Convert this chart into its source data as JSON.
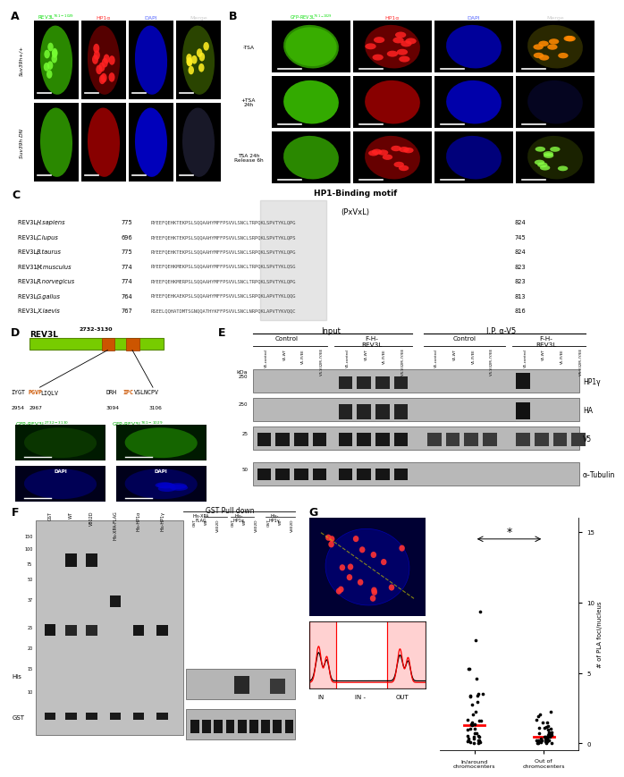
{
  "panel_labels": [
    "A",
    "B",
    "C",
    "D",
    "E",
    "F",
    "G"
  ],
  "row_labels_A": [
    "Suv39h+/+",
    "Suv39h DN"
  ],
  "col_labels_A": [
    "REV3L^{761-1029}",
    "HP1α",
    "DAPI",
    "Merge"
  ],
  "col_colors_A": [
    "#00dd00",
    "#ff3333",
    "#5566ff",
    "#cccccc"
  ],
  "col_labels_B": [
    "GFP-REV3L^{761-1029}",
    "HP1α",
    "DAPI",
    "Merge"
  ],
  "col_colors_B": [
    "#00dd00",
    "#ff3333",
    "#5566ff",
    "#cccccc"
  ],
  "row_labels_B": [
    "-TSA",
    "+TSA\n24h",
    "TSA 24h\nRelease 6h"
  ],
  "hp1_binding_title": "HP1-Binding motif",
  "hp1_binding_subtitle": "(PxVxL)",
  "sequence_data": [
    [
      "REV3L, ",
      "H.sapiens",
      "775",
      "RYEEFQEHKTEKPSLSQQAAHYMFFPSVVLSNCLTRPQKLSPVTYKLQPG",
      "824"
    ],
    [
      "REV3L, ",
      "C.lupus",
      "696",
      "RYEEFQEHKTEKPSLSQQAAHYMFFPSVVLSNCLSRPQKLSPVTYKLQPS",
      "745"
    ],
    [
      "REV3L, ",
      "B.taurus",
      "775",
      "RYEEFQEHKTEKPSLSQQAAHYMFFPSVVLSNCLSRPQKLSPVTYKLQPG",
      "824"
    ],
    [
      "REV31, ",
      "M.musculus",
      "774",
      "RYEEFQEHKMEKPSLSQQAAHYMFFPSVVLSNCLTRPQKLSPVTYKLQSG",
      "823"
    ],
    [
      "REV3L, ",
      "R.norvegicus",
      "774",
      "RYEEFQEHKMERPSLSQQAAHYMFFPSVVLSNCLTRPQKLSPVTYKLQPG",
      "823"
    ],
    [
      "REV3L, ",
      "G.gallus",
      "764",
      "RYEEFQEHKAEKPSLSQQAAHYMFFPSVVLSNCLSRPQKLAPVTYKLQQG",
      "813"
    ],
    [
      "REV3L, ",
      "X.laevis",
      "767",
      "RSEELQQHATDMTSGNQQATHYKFFPSVVLSNCLNRPQKLAPVTYKVQQC",
      "816"
    ]
  ],
  "sample_labels_E": [
    "V5-control",
    "V5-WT",
    "V5-IY/EE",
    "V5-V32M, IY/EE"
  ],
  "blot_labels_E": [
    "HP1γ",
    "HA",
    "V5",
    "α-Tubulin"
  ],
  "kda_labels_E": [
    "250",
    "25",
    "50"
  ],
  "panel_F_kda": [
    "150",
    "100",
    "75",
    "50",
    "37",
    "25",
    "20",
    "15",
    "10"
  ],
  "colors": {
    "green": "#00cc00",
    "red": "#cc0000",
    "blue": "#0000cc",
    "dark_green": "#004400",
    "blot_bg": "#b8b8b8",
    "band_dark": "#1a1a1a",
    "gel_bg": "#c0c0c0"
  }
}
